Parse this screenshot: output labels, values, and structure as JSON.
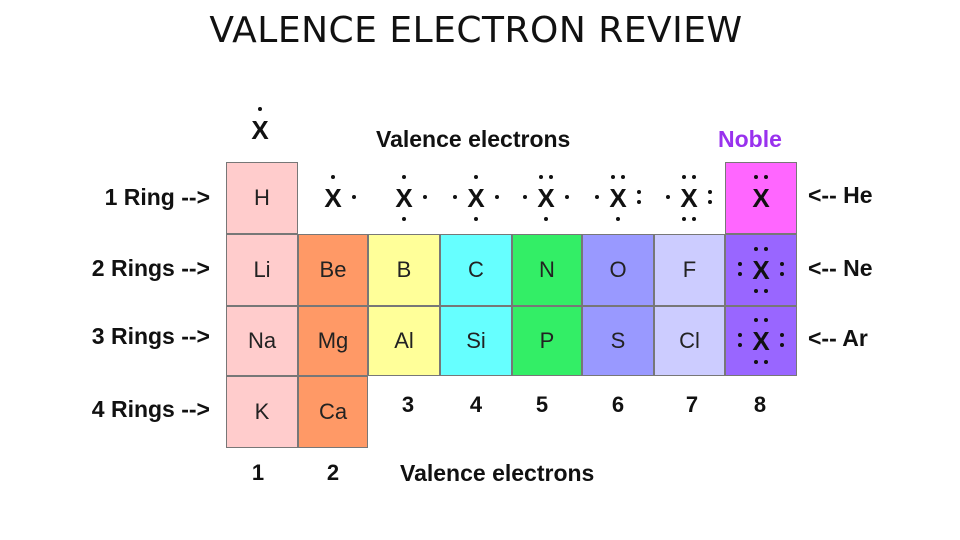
{
  "title": "VALENCE ELECTRON REVIEW",
  "header": {
    "valence_label": "Valence electrons",
    "noble_label": "Noble",
    "x_symbol": "X"
  },
  "rings": [
    "1 Ring -->",
    "2 Rings -->",
    "3 Rings -->",
    "4 Rings -->"
  ],
  "noble_gases": [
    "<-- He",
    "<-- Ne",
    "<-- Ar"
  ],
  "elements": {
    "row1": [
      "H"
    ],
    "row2": [
      "Li",
      "Be",
      "B",
      "C",
      "N",
      "O",
      "F"
    ],
    "row3": [
      "Na",
      "Mg",
      "Al",
      "Si",
      "P",
      "S",
      "Cl"
    ],
    "row4": [
      "K",
      "Ca"
    ]
  },
  "group_numbers": [
    "1",
    "2",
    "3",
    "4",
    "5",
    "6",
    "7",
    "8"
  ],
  "footer_label": "Valence electrons",
  "colors": {
    "group1": "#ffcccc",
    "group2": "#ff9966",
    "group3": "#ffff99",
    "group4": "#66ffff",
    "group5": "#33ee66",
    "group6": "#9999ff",
    "group7": "#ccccff",
    "helium": "#ff66ff",
    "noble": "#9966ff",
    "noble_text": "#9932ee"
  }
}
